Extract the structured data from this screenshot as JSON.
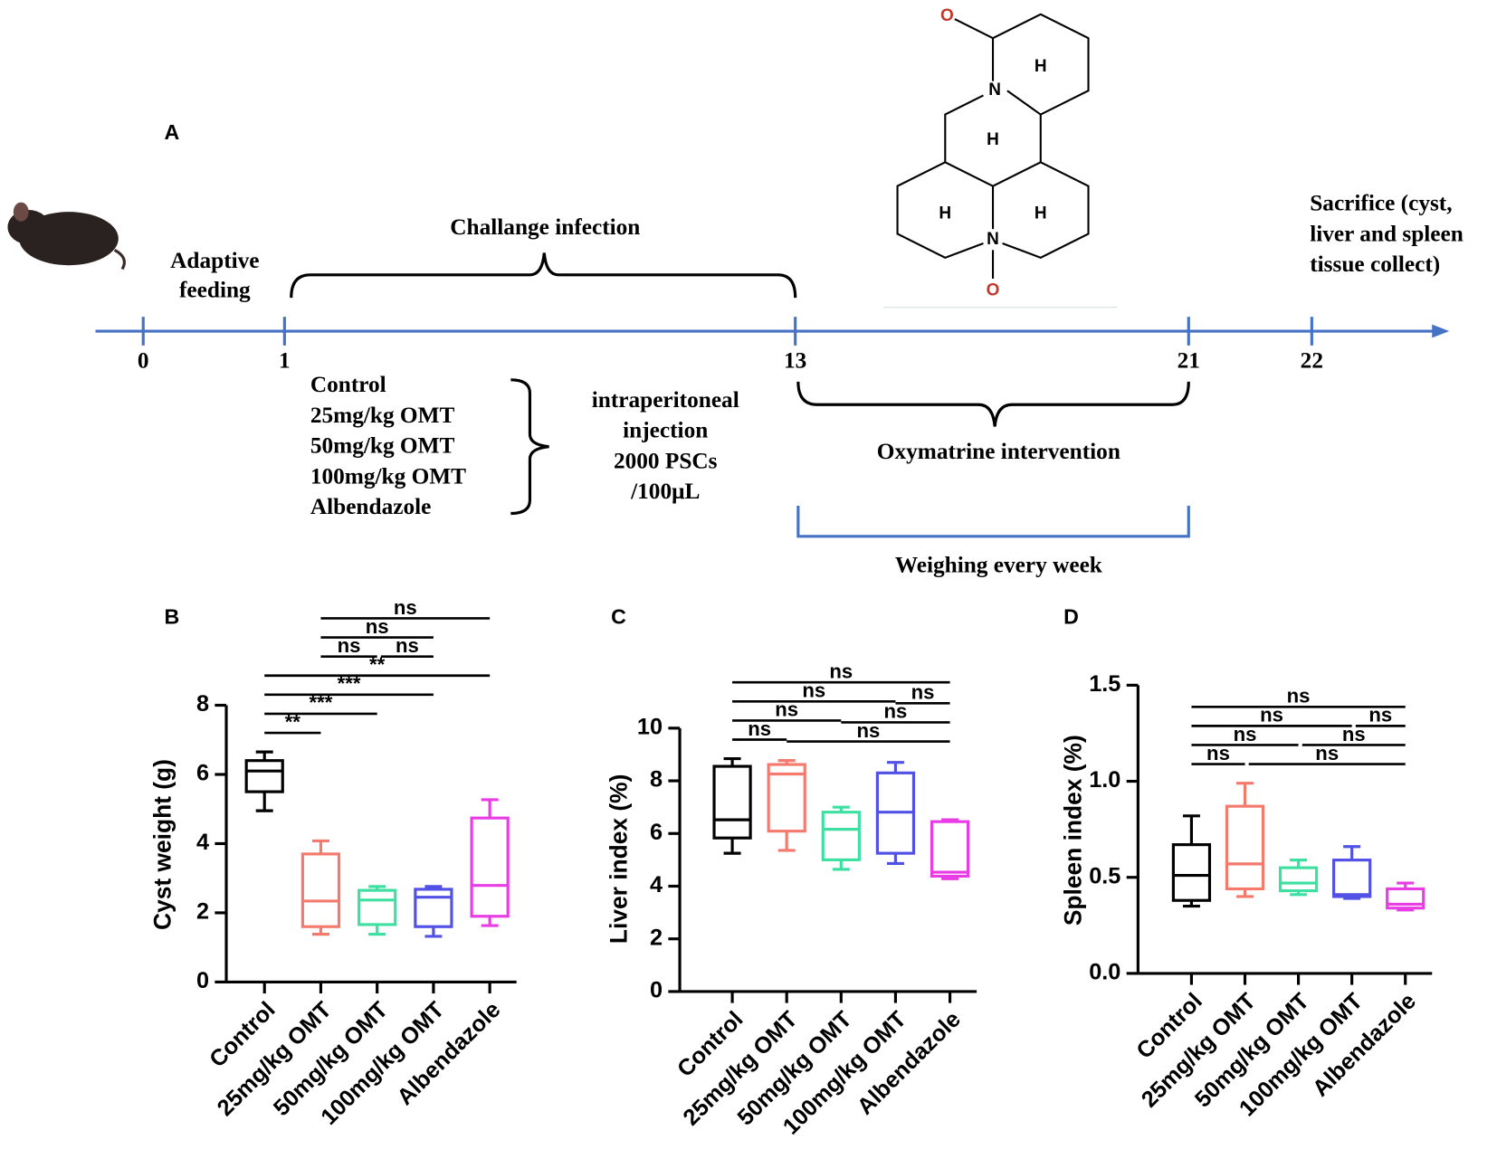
{
  "timeline": {
    "panel": "A",
    "days": [
      "0",
      "1",
      "13",
      "21",
      "22"
    ],
    "adaptive_feeding": [
      "Adaptive",
      "feeding"
    ],
    "challenge": "Challange infection",
    "groups": [
      "Control",
      "25mg/kg OMT",
      "50mg/kg OMT",
      "100mg/kg OMT",
      "Albendazole"
    ],
    "injection": [
      "intraperitoneal",
      "injection",
      "2000 PSCs",
      "/100μL"
    ],
    "intervention": "Oxymatrine intervention",
    "weighing": "Weighing every week",
    "sacrifice": [
      "Sacrifice (cyst,",
      "liver and spleen",
      "tissue collect)"
    ],
    "structure_atoms": [
      "O",
      "N",
      "H",
      "H",
      "H",
      "H",
      "N",
      "O"
    ]
  },
  "chart_data": [
    {
      "type": "box",
      "panel": "B",
      "y_label": "Cyst weight (g)",
      "categories": [
        "Control",
        "25mg/kg OMT",
        "50mg/kg OMT",
        "100mg/kg OMT",
        "Albendazole"
      ],
      "colors": [
        "#000000",
        "#f47a6e",
        "#3ee0a2",
        "#5151e6",
        "#e83ce4"
      ],
      "boxes": [
        {
          "min": 4.95,
          "q1": 5.5,
          "median": 6.1,
          "q3": 6.4,
          "max": 6.65
        },
        {
          "min": 1.38,
          "q1": 1.6,
          "median": 2.34,
          "q3": 3.7,
          "max": 4.08
        },
        {
          "min": 1.38,
          "q1": 1.66,
          "median": 2.37,
          "q3": 2.65,
          "max": 2.76
        },
        {
          "min": 1.32,
          "q1": 1.6,
          "median": 2.45,
          "q3": 2.68,
          "max": 2.76
        },
        {
          "min": 1.63,
          "q1": 1.9,
          "median": 2.79,
          "q3": 4.74,
          "max": 5.27
        }
      ],
      "ylim": [
        0,
        8
      ],
      "yticks": [
        0,
        2,
        4,
        6,
        8
      ],
      "comparisons": [
        {
          "groups": [
            0,
            1
          ],
          "label": "**"
        },
        {
          "groups": [
            0,
            2
          ],
          "label": "***"
        },
        {
          "groups": [
            0,
            3
          ],
          "label": "***"
        },
        {
          "groups": [
            0,
            4
          ],
          "label": "**"
        },
        {
          "groups": [
            1,
            2
          ],
          "label": "ns"
        },
        {
          "groups": [
            2,
            3
          ],
          "label": "ns"
        },
        {
          "groups": [
            1,
            3
          ],
          "label": "ns"
        },
        {
          "groups": [
            1,
            4
          ],
          "label": "ns"
        }
      ]
    },
    {
      "type": "box",
      "panel": "C",
      "y_label": "Liver index (%)",
      "categories": [
        "Control",
        "25mg/kg OMT",
        "50mg/kg OMT",
        "100mg/kg OMT",
        "Albendazole"
      ],
      "colors": [
        "#000000",
        "#f47a6e",
        "#3ee0a2",
        "#5151e6",
        "#e83ce4"
      ],
      "boxes": [
        {
          "min": 5.25,
          "q1": 5.83,
          "median": 6.52,
          "q3": 8.55,
          "max": 8.84
        },
        {
          "min": 5.36,
          "q1": 6.09,
          "median": 8.26,
          "q3": 8.62,
          "max": 8.77
        },
        {
          "min": 4.64,
          "q1": 5.0,
          "median": 6.16,
          "q3": 6.81,
          "max": 7.0
        },
        {
          "min": 4.86,
          "q1": 5.25,
          "median": 6.81,
          "q3": 8.3,
          "max": 8.7
        },
        {
          "min": 4.28,
          "q1": 4.38,
          "median": 4.53,
          "q3": 6.45,
          "max": 6.52
        }
      ],
      "ylim": [
        0,
        10
      ],
      "yticks": [
        0,
        2,
        4,
        6,
        8,
        10
      ],
      "comparisons": [
        {
          "groups": [
            0,
            1
          ],
          "label": "ns"
        },
        {
          "groups": [
            1,
            4
          ],
          "label": "ns"
        },
        {
          "groups": [
            0,
            2
          ],
          "label": "ns"
        },
        {
          "groups": [
            2,
            4
          ],
          "label": "ns"
        },
        {
          "groups": [
            0,
            3
          ],
          "label": "ns"
        },
        {
          "groups": [
            3,
            4
          ],
          "label": "ns"
        },
        {
          "groups": [
            0,
            4
          ],
          "label": "ns"
        }
      ]
    },
    {
      "type": "box",
      "panel": "D",
      "y_label": "Spleen index (%)",
      "categories": [
        "Control",
        "25mg/kg OMT",
        "50mg/kg OMT",
        "100mg/kg OMT",
        "Albendazole"
      ],
      "colors": [
        "#000000",
        "#f47a6e",
        "#3ee0a2",
        "#5151e6",
        "#e83ce4"
      ],
      "boxes": [
        {
          "min": 0.35,
          "q1": 0.38,
          "median": 0.51,
          "q3": 0.67,
          "max": 0.82
        },
        {
          "min": 0.4,
          "q1": 0.44,
          "median": 0.57,
          "q3": 0.87,
          "max": 0.99
        },
        {
          "min": 0.41,
          "q1": 0.43,
          "median": 0.47,
          "q3": 0.55,
          "max": 0.59
        },
        {
          "min": 0.39,
          "q1": 0.4,
          "median": 0.41,
          "q3": 0.59,
          "max": 0.66
        },
        {
          "min": 0.33,
          "q1": 0.34,
          "median": 0.36,
          "q3": 0.44,
          "max": 0.47
        }
      ],
      "ylim": [
        0,
        1.5
      ],
      "yticks": [
        {
          "value": 0,
          "label": "0.0"
        },
        0.5,
        {
          "value": 1,
          "label": "1.0"
        },
        1.5
      ],
      "comparisons": [
        {
          "groups": [
            0,
            1
          ],
          "label": "ns"
        },
        {
          "groups": [
            1,
            4
          ],
          "label": "ns"
        },
        {
          "groups": [
            0,
            2
          ],
          "label": "ns"
        },
        {
          "groups": [
            2,
            4
          ],
          "label": "ns"
        },
        {
          "groups": [
            0,
            3
          ],
          "label": "ns"
        },
        {
          "groups": [
            3,
            4
          ],
          "label": "ns"
        },
        {
          "groups": [
            0,
            4
          ],
          "label": "ns"
        }
      ]
    }
  ]
}
